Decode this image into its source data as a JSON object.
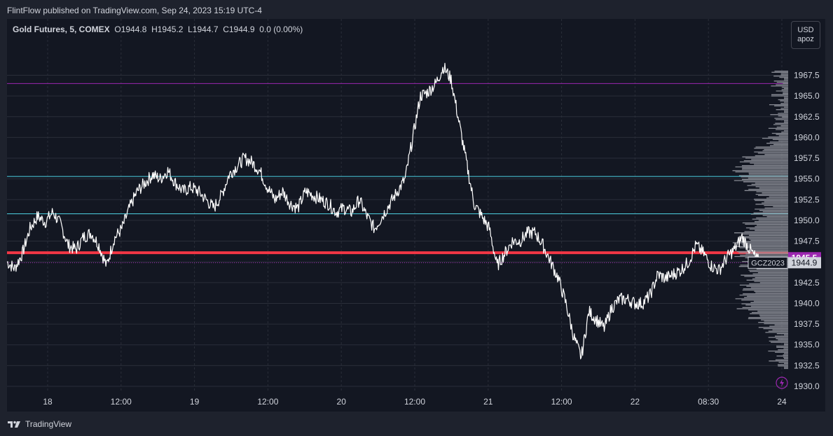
{
  "header": {
    "text": "FlintFlow published on TradingView.com, Sep 24, 2023 15:19 UTC-4"
  },
  "footer": {
    "brand": "TradingView"
  },
  "currency": {
    "line1": "USD",
    "line2": "apoz"
  },
  "legend": {
    "symbol": "Gold Futures, 5, COMEX",
    "open": "O1944.8",
    "high": "H1945.2",
    "low": "L1944.7",
    "close": "C1944.9",
    "change": "0.0 (0.00%)"
  },
  "colors": {
    "background": "#131722",
    "frame": "#1e222d",
    "grid": "#2a2e39",
    "price": "#ffffff",
    "red_level": "#f23645",
    "cyan_level": "#4dd0e1",
    "purple_level": "#9c27b0",
    "volume_profile": "#9598a1",
    "badge_purple": "#9c27b0"
  },
  "chart_data": {
    "type": "line",
    "title": "Gold Futures, 5, COMEX",
    "x_ticks": [
      "18",
      "12:00",
      "19",
      "12:00",
      "20",
      "12:00",
      "21",
      "12:00",
      "22",
      "08:30",
      "24"
    ],
    "y_ticks": [
      "1967.5",
      "1965.0",
      "1962.5",
      "1960.0",
      "1957.5",
      "1955.0",
      "1952.5",
      "1950.0",
      "1947.5",
      "1945.0",
      "1942.5",
      "1940.0",
      "1937.5",
      "1935.0",
      "1932.5",
      "1930.0"
    ],
    "ylim": [
      1930.0,
      1969.0
    ],
    "grid": true,
    "series": [
      {
        "values": [
          1945.0,
          1944.2,
          1946.0,
          1949.0,
          1950.5,
          1949.8,
          1951.0,
          1949.5,
          1947.0,
          1946.5,
          1948.0,
          1948.5,
          1947.0,
          1944.5,
          1947.8,
          1949.0,
          1951.5,
          1953.5,
          1954.5,
          1955.5,
          1955.0,
          1956.0,
          1954.5,
          1953.5,
          1954.0,
          1953.5,
          1952.5,
          1951.5,
          1953.0,
          1955.5,
          1956.5,
          1957.5,
          1957.0,
          1956.0,
          1954.0,
          1952.5,
          1953.5,
          1952.0,
          1951.5,
          1953.5,
          1953.0,
          1952.5,
          1952.0,
          1951.0,
          1951.5,
          1951.0,
          1952.5,
          1950.5,
          1949.0,
          1950.5,
          1952.0,
          1953.5,
          1955.0,
          1960.0,
          1965.0,
          1965.5,
          1966.5,
          1968.5,
          1967.0,
          1962.0,
          1957.0,
          1952.0,
          1950.5,
          1949.0,
          1944.5,
          1946.0,
          1947.5,
          1947.5,
          1948.5,
          1948.5,
          1947.0,
          1945.0,
          1943.0,
          1940.0,
          1936.0,
          1933.5,
          1939.0,
          1938.0,
          1937.0,
          1939.5,
          1940.5,
          1940.5,
          1940.0,
          1940.0,
          1941.0,
          1943.5,
          1943.0,
          1943.5,
          1944.0,
          1945.0,
          1947.0,
          1946.0,
          1944.5,
          1944.0,
          1945.5,
          1946.5,
          1948.0,
          1946.5,
          1945.2,
          1944.9
        ]
      }
    ],
    "horizontal_levels": [
      {
        "price": 1966.5,
        "color": "purple"
      },
      {
        "price": 1955.3,
        "color": "cyan"
      },
      {
        "price": 1950.8,
        "color": "cyan"
      },
      {
        "price": 1946.1,
        "color": "red"
      },
      {
        "price": 1944.9,
        "color": "dotted"
      }
    ],
    "badges": [
      {
        "label": "1945.5",
        "price": 1945.5,
        "color": "#9c27b0"
      },
      {
        "label": "1944.9",
        "price": 1944.9,
        "color": "#ffffff"
      }
    ],
    "symbol_tag": "GCZ2023",
    "volume_profile": "right-aligned histogram",
    "legend_position": "top-left"
  }
}
